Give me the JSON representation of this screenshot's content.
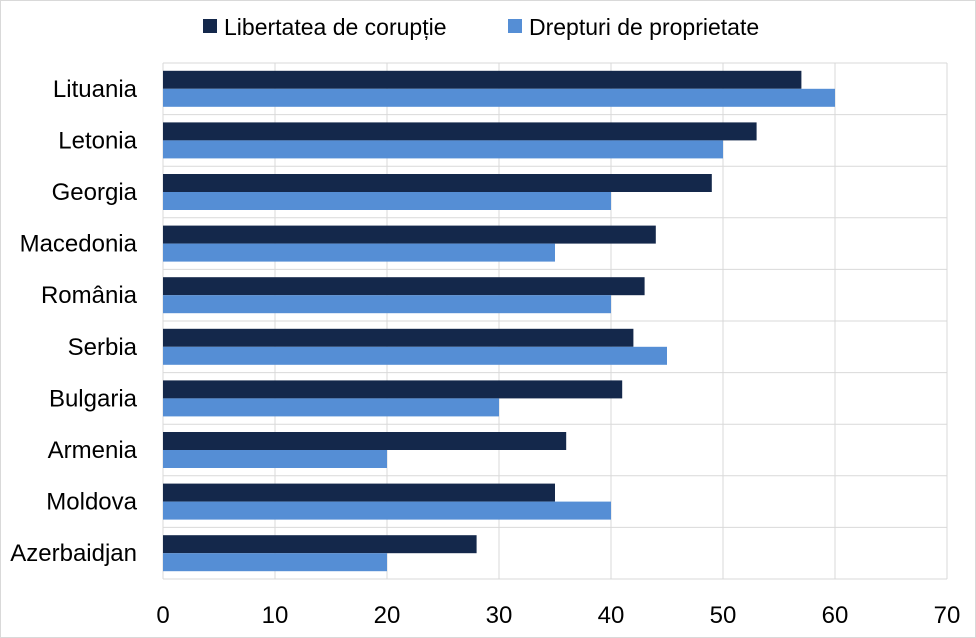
{
  "chart_data": {
    "type": "bar",
    "orientation": "horizontal",
    "categories": [
      "Lituania",
      "Letonia",
      "Georgia",
      "Macedonia",
      "România",
      "Serbia",
      "Bulgaria",
      "Armenia",
      "Moldova",
      "Azerbaidjan"
    ],
    "series": [
      {
        "name": "Libertatea de corupție",
        "color": "#14284b",
        "values": [
          57,
          53,
          49,
          44,
          43,
          42,
          41,
          36,
          35,
          28
        ]
      },
      {
        "name": "Drepturi de proprietate",
        "color": "#558ed5",
        "values": [
          60,
          50,
          40,
          35,
          40,
          45,
          30,
          20,
          40,
          20
        ]
      }
    ],
    "xlim": [
      0,
      70
    ],
    "xticks": [
      "0",
      "10",
      "20",
      "30",
      "40",
      "50",
      "60",
      "70"
    ],
    "grid": true,
    "legend_position": "top"
  }
}
